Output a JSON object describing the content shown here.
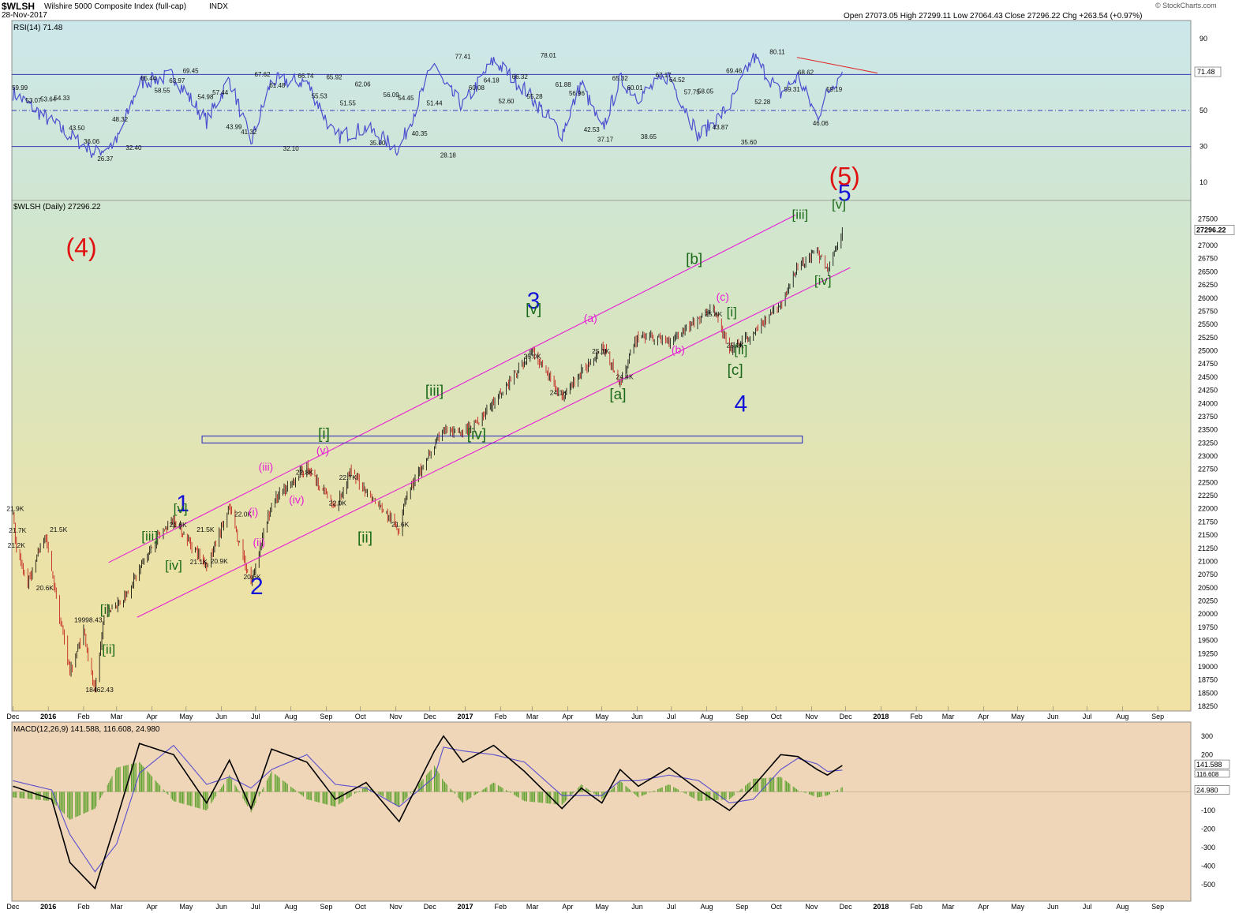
{
  "header": {
    "symbol": "$WLSH",
    "name": "Wilshire 5000 Composite Index (full-cap)",
    "exchange": "INDX",
    "date": "28-Nov-2017",
    "ohlc": "Open 27073.05  High 27299.11  Low 27064.43  Close 27296.22  Chg +263.54 (+0.97%)",
    "watermark": "© StockCharts.com"
  },
  "chart_data": [
    {
      "type": "line",
      "panel": "rsi",
      "title": "RSI(14) 71.48",
      "ylim": [
        0,
        100
      ],
      "yticks": [
        10,
        30,
        50,
        70,
        90
      ],
      "reference_lines": [
        30,
        50,
        70
      ],
      "last_value_label": "71.48",
      "series": [
        {
          "name": "RSI(14)",
          "x": [
            "2015-12-01",
            "2016-01-04",
            "2016-01-20",
            "2016-02-11",
            "2016-03-01",
            "2016-03-21",
            "2016-04-20",
            "2016-05-19",
            "2016-06-08",
            "2016-06-27",
            "2016-07-15",
            "2016-08-15",
            "2016-09-09",
            "2016-10-06",
            "2016-11-04",
            "2016-12-05",
            "2016-12-13",
            "2016-12-30",
            "2017-01-26",
            "2017-02-22",
            "2017-03-27",
            "2017-04-13",
            "2017-05-01",
            "2017-05-17",
            "2017-06-02",
            "2017-06-29",
            "2017-07-25",
            "2017-08-21",
            "2017-09-11",
            "2017-10-05",
            "2017-10-20",
            "2017-11-06",
            "2017-11-15",
            "2017-11-28"
          ],
          "values": [
            59.99,
            43.5,
            36.06,
            26.37,
            32.4,
            65.44,
            69.45,
            43.99,
            67.62,
            32.1,
            66.74,
            65.92,
            35.0,
            40.35,
            28.18,
            77.41,
            64.18,
            52.6,
            78.01,
            61.88,
            37.17,
            65.32,
            38.65,
            67.17,
            57.75,
            69.46,
            35.6,
            52.28,
            80.11,
            59.31,
            68.62,
            46.06,
            60.0,
            71.48
          ]
        }
      ],
      "annotations": [
        "59.99",
        "53.07",
        "53.64",
        "54.33",
        "43.50",
        "36.06",
        "26.37",
        "48.32",
        "32.40",
        "65.44",
        "58.55",
        "63.97",
        "69.45",
        "54.98",
        "57.44",
        "43.99",
        "41.32",
        "67.62",
        "61.48",
        "32.10",
        "66.74",
        "55.53",
        "65.92",
        "51.55",
        "62.06",
        "35.00",
        "56.09",
        "54.45",
        "40.35",
        "51.44",
        "28.18",
        "77.41",
        "60.08",
        "64.18",
        "52.60",
        "66.32",
        "55.28",
        "78.01",
        "61.88",
        "56.96",
        "42.53",
        "37.17",
        "65.32",
        "60.01",
        "38.65",
        "67.17",
        "64.52",
        "57.75",
        "58.05",
        "43.87",
        "69.46",
        "35.60",
        "52.28",
        "80.11",
        "59.31",
        "68.62",
        "46.06",
        "59.19"
      ]
    },
    {
      "type": "line",
      "panel": "price",
      "title": "$WLSH (Daily) 27296.22",
      "ylim": [
        18250,
        27750
      ],
      "yticks": [
        18250,
        18500,
        18750,
        19000,
        19250,
        19500,
        19750,
        20000,
        20250,
        20500,
        20750,
        21000,
        21250,
        21500,
        21750,
        22000,
        22250,
        22500,
        22750,
        23000,
        23250,
        23500,
        23750,
        24000,
        24250,
        24500,
        24750,
        25000,
        25250,
        25500,
        25750,
        26000,
        26250,
        26500,
        26750,
        27000,
        27250,
        27500
      ],
      "last_value_label": "27296.22",
      "x_tick_labels": [
        "Dec",
        "2016",
        "Feb",
        "Mar",
        "Apr",
        "May",
        "Jun",
        "Jul",
        "Aug",
        "Sep",
        "Oct",
        "Nov",
        "Dec",
        "2017",
        "Feb",
        "Mar",
        "Apr",
        "May",
        "Jun",
        "Jul",
        "Aug",
        "Sep",
        "Oct",
        "Nov",
        "Dec",
        "2018",
        "Feb",
        "Mar",
        "Apr",
        "May",
        "Jun",
        "Jul",
        "Aug",
        "Sep"
      ],
      "series": [
        {
          "name": "$WLSH",
          "x": [
            "2015-12-01",
            "2015-12-04",
            "2015-12-14",
            "2015-12-29",
            "2016-01-04",
            "2016-01-20",
            "2016-02-01",
            "2016-02-11",
            "2016-02-19",
            "2016-03-07",
            "2016-04-04",
            "2016-04-20",
            "2016-05-19",
            "2016-06-08",
            "2016-06-27",
            "2016-07-15",
            "2016-08-15",
            "2016-09-09",
            "2016-09-22",
            "2016-11-04",
            "2016-11-09",
            "2016-12-13",
            "2016-12-30",
            "2017-01-26",
            "2017-03-01",
            "2017-03-27",
            "2017-05-01",
            "2017-05-17",
            "2017-06-02",
            "2017-06-29",
            "2017-08-07",
            "2017-08-21",
            "2017-09-11",
            "2017-10-05",
            "2017-10-20",
            "2017-11-06",
            "2017-11-15",
            "2017-11-28"
          ],
          "values": [
            21900,
            21200,
            20600,
            21500,
            20800,
            18900,
            19700,
            18462.43,
            19998.43,
            20300,
            21400,
            21800,
            20900,
            22000,
            20600,
            22100,
            22800,
            22000,
            22700,
            21600,
            22200,
            23500,
            23400,
            24000,
            25000,
            24100,
            25100,
            24400,
            25300,
            25200,
            25800,
            25000,
            25300,
            25900,
            26600,
            26900,
            26500,
            27296.22
          ]
        }
      ],
      "annotations": {
        "price_labels": [
          "21.9K",
          "21.7K",
          "21.2K",
          "20.6K",
          "21.5K",
          "19998.43",
          "18462.43",
          "21.8K",
          "21.5K",
          "21.1K",
          "20.9K",
          "22.0K",
          "20.6K",
          "22.8K",
          "22.0K",
          "22.7K",
          "21.6K",
          "25.0K",
          "24.1K",
          "25.1K",
          "24.4K",
          "25.8K",
          "25.0K"
        ],
        "wave_labels": [
          "1",
          "2",
          "3",
          "4",
          "5",
          "(4)",
          "(5)",
          "[i]",
          "[ii]",
          "[iii]",
          "[iv]",
          "[v]",
          "[i]",
          "[ii]",
          "[iii]",
          "[iv]",
          "[v]",
          "[a]",
          "[b]",
          "[c]",
          "[i]",
          "[ii]",
          "[iii]",
          "[iv]",
          "[v]",
          "(i)",
          "(ii)",
          "(iii)",
          "(iv)",
          "(v)",
          "(a)",
          "(b)",
          "(c)"
        ]
      }
    },
    {
      "type": "line",
      "panel": "macd",
      "title": "MACD(12,26,9) 141.588, 116.608, 24.980",
      "ylim": [
        -550,
        350
      ],
      "yticks": [
        -500,
        -400,
        -300,
        -200,
        -100,
        0,
        100,
        200,
        300
      ],
      "last_value_labels": [
        "141.588",
        "116.608",
        "24.980"
      ],
      "series": [
        {
          "name": "MACD",
          "x": [
            "2015-12-01",
            "2016-01-04",
            "2016-01-20",
            "2016-02-11",
            "2016-03-01",
            "2016-03-21",
            "2016-04-20",
            "2016-05-19",
            "2016-06-08",
            "2016-06-27",
            "2016-07-15",
            "2016-08-15",
            "2016-09-09",
            "2016-10-06",
            "2016-11-04",
            "2016-12-05",
            "2016-12-13",
            "2016-12-30",
            "2017-01-26",
            "2017-02-22",
            "2017-03-27",
            "2017-04-13",
            "2017-05-01",
            "2017-05-17",
            "2017-06-02",
            "2017-06-29",
            "2017-07-25",
            "2017-08-21",
            "2017-09-11",
            "2017-10-05",
            "2017-10-20",
            "2017-11-06",
            "2017-11-15",
            "2017-11-28"
          ],
          "values": [
            30,
            -40,
            -380,
            -520,
            -150,
            260,
            200,
            -60,
            170,
            -90,
            230,
            160,
            -40,
            50,
            -160,
            220,
            300,
            160,
            250,
            110,
            -90,
            20,
            -60,
            120,
            30,
            130,
            10,
            -100,
            30,
            200,
            190,
            120,
            90,
            141.588
          ]
        },
        {
          "name": "Signal",
          "x": [
            "2015-12-01",
            "2016-01-04",
            "2016-01-20",
            "2016-02-11",
            "2016-03-01",
            "2016-03-21",
            "2016-04-20",
            "2016-05-19",
            "2016-06-08",
            "2016-06-27",
            "2016-07-15",
            "2016-08-15",
            "2016-09-09",
            "2016-10-06",
            "2016-11-04",
            "2016-12-05",
            "2016-12-13",
            "2016-12-30",
            "2017-01-26",
            "2017-02-22",
            "2017-03-27",
            "2017-04-13",
            "2017-05-01",
            "2017-05-17",
            "2017-06-02",
            "2017-06-29",
            "2017-07-25",
            "2017-08-21",
            "2017-09-11",
            "2017-10-05",
            "2017-10-20",
            "2017-11-06",
            "2017-11-15",
            "2017-11-28"
          ],
          "values": [
            60,
            10,
            -230,
            -430,
            -280,
            100,
            250,
            40,
            80,
            20,
            120,
            200,
            40,
            20,
            -80,
            80,
            240,
            220,
            200,
            160,
            -20,
            -20,
            -20,
            60,
            60,
            90,
            60,
            -60,
            -40,
            120,
            180,
            150,
            110,
            116.608
          ]
        },
        {
          "name": "Histogram",
          "x": [
            "2015-12-01",
            "2016-01-04",
            "2016-01-20",
            "2016-02-11",
            "2016-03-01",
            "2016-03-21",
            "2016-04-20",
            "2016-05-19",
            "2016-06-08",
            "2016-06-27",
            "2016-07-15",
            "2016-08-15",
            "2016-09-09",
            "2016-10-06",
            "2016-11-04",
            "2016-12-05",
            "2016-12-13",
            "2016-12-30",
            "2017-01-26",
            "2017-02-22",
            "2017-03-27",
            "2017-04-13",
            "2017-05-01",
            "2017-05-17",
            "2017-06-02",
            "2017-06-29",
            "2017-07-25",
            "2017-08-21",
            "2017-09-11",
            "2017-10-05",
            "2017-10-20",
            "2017-11-06",
            "2017-11-15",
            "2017-11-28"
          ],
          "values": [
            -30,
            -50,
            -150,
            -90,
            130,
            160,
            -50,
            -100,
            90,
            -110,
            110,
            -40,
            -80,
            30,
            -80,
            140,
            60,
            -60,
            50,
            -50,
            -70,
            40,
            -40,
            60,
            -30,
            40,
            -50,
            -40,
            70,
            80,
            10,
            -30,
            -20,
            24.98
          ]
        }
      ]
    }
  ],
  "colors": {
    "rsi_line": "#4b4fcf",
    "rsi_ref": "#3a3ab8",
    "price_bar": "#000000",
    "channel": "#e81ed8",
    "wave_blue": "#1414d8",
    "wave_red": "#e01010",
    "wave_green": "#1a6a1a",
    "wave_magenta": "#e81ed8",
    "macd": "#000000",
    "signal": "#5a4fd0",
    "histogram": "#5aa02a"
  }
}
